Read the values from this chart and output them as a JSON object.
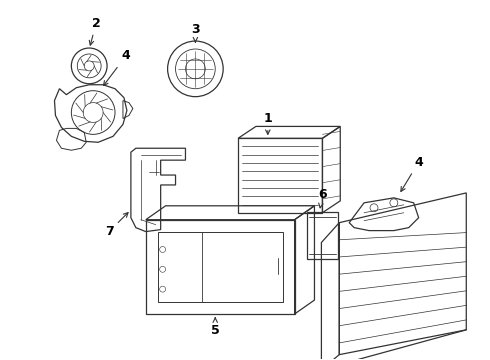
{
  "background_color": "#ffffff",
  "line_color": "#333333",
  "text_color": "#000000",
  "fig_width": 4.9,
  "fig_height": 3.6,
  "dpi": 100
}
